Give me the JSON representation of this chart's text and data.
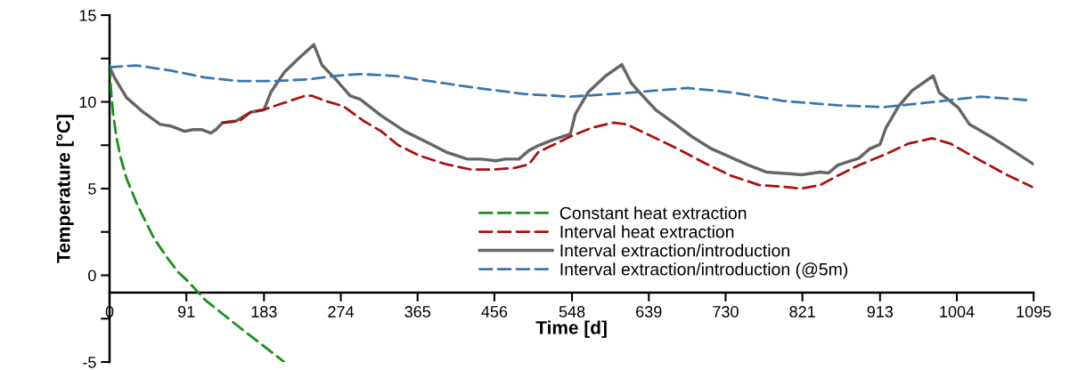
{
  "chart_data": {
    "type": "line",
    "xlabel": "Time [d]",
    "ylabel": "Temperature [°C]",
    "xlim": [
      0,
      1095
    ],
    "xticks": [
      0,
      91,
      183,
      274,
      365,
      456,
      548,
      639,
      730,
      821,
      913,
      1004,
      1095
    ],
    "ylim": [
      -5,
      15
    ],
    "yticks": [
      -5,
      {
        "value": -2.5,
        "label": null
      },
      0,
      {
        "value": 2.5,
        "label": null
      },
      5,
      {
        "value": 7.5,
        "label": null
      },
      10,
      {
        "value": 12.5,
        "label": null
      },
      15
    ],
    "grid": false,
    "legend": "bottom",
    "marker": "none",
    "series": [
      {
        "name": "Constant heat extraction",
        "color": "#1a8f1a",
        "line_style": "dashed",
        "x": [
          0,
          2,
          4,
          8,
          13,
          20,
          33,
          53,
          70,
          81,
          92,
          114,
          154,
          207
        ],
        "values": [
          12.1,
          10.5,
          9.4,
          8.0,
          6.8,
          5.6,
          4.05,
          2.1,
          0.9,
          0.2,
          -0.3,
          -1.45,
          -3.0,
          -5.0
        ]
      },
      {
        "name": "Interval heat extraction",
        "color": "#aa1111",
        "line_style": "dashed",
        "x": [
          134,
          154,
          167,
          183,
          207,
          232,
          240,
          256,
          277,
          301,
          322,
          342,
          367,
          399,
          428,
          456,
          481,
          497,
          508,
          546,
          571,
          597,
          613,
          643,
          673,
          706,
          736,
          770,
          799,
          820,
          842,
          863,
          888,
          918,
          947,
          975,
          996,
          1027,
          1061,
          1093
        ],
        "values": [
          8.8,
          8.9,
          9.4,
          9.55,
          9.95,
          10.35,
          10.35,
          10.05,
          9.75,
          8.9,
          8.3,
          7.5,
          6.9,
          6.4,
          6.1,
          6.1,
          6.2,
          6.4,
          7.1,
          8.0,
          8.5,
          8.8,
          8.7,
          8.0,
          7.3,
          6.45,
          5.75,
          5.2,
          5.1,
          5.0,
          5.2,
          5.75,
          6.35,
          6.95,
          7.6,
          7.9,
          7.6,
          6.75,
          5.85,
          5.1
        ]
      },
      {
        "name": "Interval extraction/introduction",
        "color": "#666666",
        "line_style": "solid",
        "x": [
          0,
          7,
          20,
          40,
          60,
          73,
          89,
          99,
          109,
          120,
          126,
          134,
          150,
          167,
          183,
          191,
          207,
          224,
          242,
          252,
          268,
          285,
          297,
          322,
          350,
          379,
          399,
          424,
          440,
          458,
          469,
          485,
          497,
          509,
          525,
          546,
          552,
          567,
          588,
          607,
          618,
          628,
          647,
          668,
          690,
          713,
          736,
          757,
          778,
          808,
          820,
          842,
          852,
          863,
          888,
          901,
          913,
          920,
          935,
          951,
          976,
          983,
          996,
          1006,
          1019,
          1044,
          1070,
          1095
        ],
        "values": [
          12.0,
          11.3,
          10.25,
          9.4,
          8.7,
          8.6,
          8.3,
          8.4,
          8.4,
          8.2,
          8.4,
          8.8,
          8.9,
          9.4,
          9.55,
          10.55,
          11.7,
          12.5,
          13.3,
          12.1,
          11.3,
          10.35,
          10.15,
          9.2,
          8.3,
          7.6,
          7.1,
          6.7,
          6.7,
          6.6,
          6.7,
          6.7,
          7.2,
          7.5,
          7.8,
          8.15,
          9.3,
          10.55,
          11.5,
          12.15,
          11.1,
          10.55,
          9.55,
          8.8,
          8.0,
          7.3,
          6.8,
          6.35,
          5.95,
          5.85,
          5.8,
          5.95,
          5.9,
          6.35,
          6.75,
          7.3,
          7.55,
          8.5,
          9.75,
          10.65,
          11.5,
          10.55,
          10.05,
          9.65,
          8.7,
          8.0,
          7.2,
          6.4
        ]
      },
      {
        "name": "Interval extraction/introduction (@5m)",
        "color": "#3a76b0",
        "line_style": "dashed",
        "x": [
          0,
          32,
          73,
          113,
          154,
          195,
          236,
          268,
          297,
          338,
          379,
          420,
          460,
          491,
          546,
          609,
          685,
          736,
          799,
          863,
          918,
          968,
          1032,
          1087
        ],
        "values": [
          12.0,
          12.1,
          11.8,
          11.4,
          11.2,
          11.2,
          11.3,
          11.5,
          11.6,
          11.5,
          11.2,
          10.9,
          10.65,
          10.45,
          10.3,
          10.5,
          10.8,
          10.55,
          10.05,
          9.8,
          9.7,
          9.95,
          10.3,
          10.1
        ]
      }
    ]
  }
}
